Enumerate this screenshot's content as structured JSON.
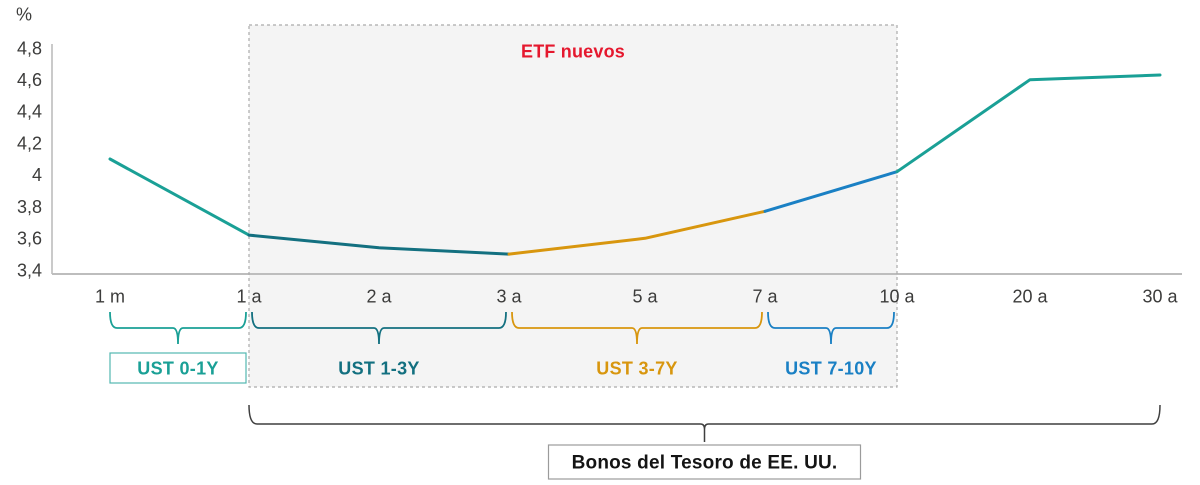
{
  "chart_data": {
    "type": "line",
    "title": "",
    "xlabel": "",
    "ylabel": "%",
    "ylim": [
      3.4,
      4.8
    ],
    "y_ticks": [
      "4,8",
      "4,6",
      "4,4",
      "4,2",
      "4",
      "3,8",
      "3,6",
      "3,4"
    ],
    "categories": [
      "1 m",
      "1 a",
      "2 a",
      "3 a",
      "5 a",
      "7 a",
      "10 a",
      "20 a",
      "30 a"
    ],
    "values": [
      4.1,
      3.62,
      3.54,
      3.5,
      3.6,
      3.77,
      4.02,
      4.6,
      4.63
    ],
    "grid": false,
    "legend": "none",
    "axis_color": "#bdbdbd",
    "tick_color": "#3c3c3b",
    "segments": [
      {
        "name": "ust-0-1y",
        "from": 0,
        "to": 1,
        "color": "#1aa096"
      },
      {
        "name": "ust-1-3y",
        "from": 1,
        "to": 3,
        "color": "#137080"
      },
      {
        "name": "ust-3-7y",
        "from": 3,
        "to": 5,
        "color": "#d8960e"
      },
      {
        "name": "ust-7-10y",
        "from": 5,
        "to": 6,
        "color": "#1a80c4"
      },
      {
        "name": "long-end",
        "from": 6,
        "to": 8,
        "color": "#1aa096"
      }
    ],
    "highlight_region": {
      "label": "ETF nuevos",
      "from_category": "1 a",
      "to_category": "10 a",
      "label_color": "#e5182e",
      "fill": "#f4f4f4",
      "border": "#ababab"
    }
  },
  "annotations": {
    "buckets": [
      {
        "label": "UST 0-1Y",
        "from": 0,
        "to": 1,
        "color": "#1aa096",
        "boxed": true
      },
      {
        "label": "UST 1-3Y",
        "from": 1,
        "to": 3,
        "color": "#137080",
        "boxed": false
      },
      {
        "label": "UST 3-7Y",
        "from": 3,
        "to": 5,
        "color": "#d8960e",
        "boxed": false
      },
      {
        "label": "UST 7-10Y",
        "from": 5,
        "to": 6,
        "color": "#1a80c4",
        "boxed": false
      }
    ],
    "bottom_bracket": {
      "label": "Bonos del Tesoro de EE. UU.",
      "from": 1,
      "to": 8,
      "color": "#3f3f3f",
      "box_border": "#9b9b9b"
    }
  }
}
